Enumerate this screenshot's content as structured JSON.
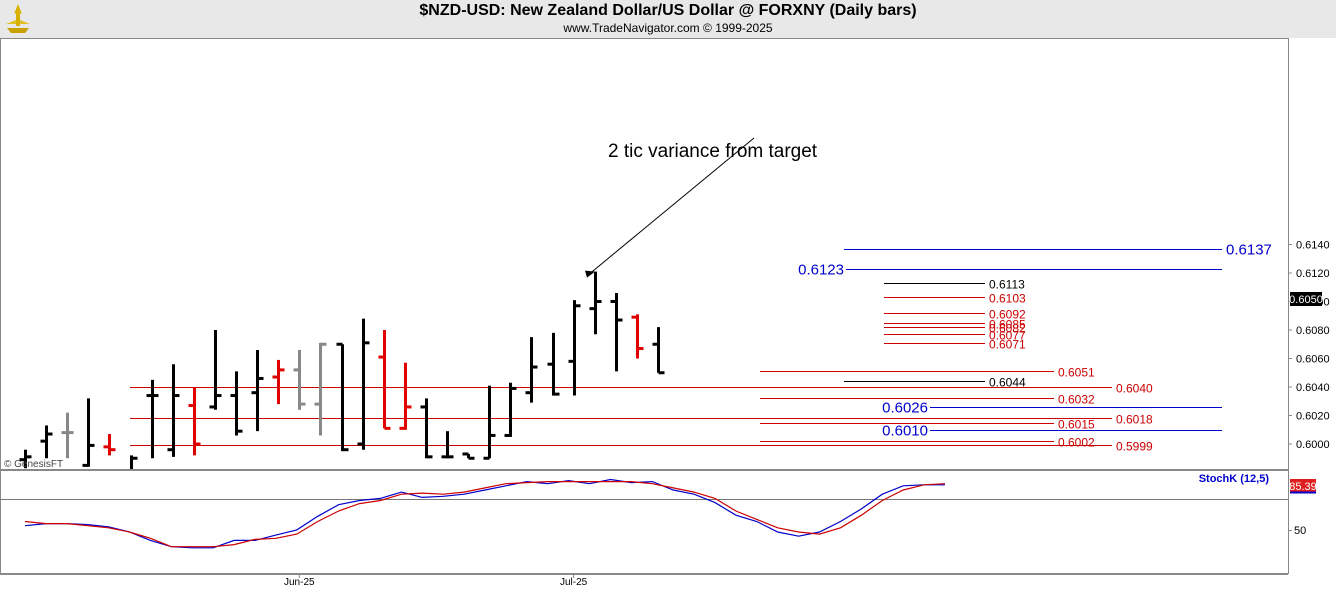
{
  "header": {
    "title": "$NZD-USD:  New Zealand Dollar/US Dollar @ FORXNY  (Daily bars)",
    "subtitle": "www.TradeNavigator.com © 1999-2025",
    "watermark": "© GenesisFT"
  },
  "chart_data": [
    {
      "type": "ohlc",
      "ylim": [
        0.5991,
        0.6144
      ],
      "y_ticks": [
        "0.6000",
        "0.6020",
        "0.6040",
        "0.6060",
        "0.6080",
        "0.6100",
        "0.6120",
        "0.6140"
      ],
      "x_labels": [
        {
          "label": "Jun-25",
          "bar": 13
        },
        {
          "label": "Jul-25",
          "bar": 26
        }
      ],
      "last_price_label": "0.6050",
      "bars": [
        {
          "o": 0.5989,
          "h": 0.5996,
          "l": 0.5983,
          "c": 0.5991,
          "color": "black"
        },
        {
          "o": 0.6002,
          "h": 0.6013,
          "l": 0.599,
          "c": 0.6007,
          "color": "black"
        },
        {
          "o": 0.6008,
          "h": 0.6022,
          "l": 0.599,
          "c": 0.6008,
          "color": "gray"
        },
        {
          "o": 0.5985,
          "h": 0.6032,
          "l": 0.5984,
          "c": 0.5999,
          "color": "black"
        },
        {
          "o": 0.5998,
          "h": 0.6007,
          "l": 0.5992,
          "c": 0.5996,
          "color": "red"
        },
        {
          "o": 0.598,
          "h": 0.5992,
          "l": 0.5978,
          "c": 0.599,
          "color": "black"
        },
        {
          "o": 0.6034,
          "h": 0.6045,
          "l": 0.599,
          "c": 0.6034,
          "color": "black"
        },
        {
          "o": 0.5996,
          "h": 0.6056,
          "l": 0.5991,
          "c": 0.6034,
          "color": "black"
        },
        {
          "o": 0.6027,
          "h": 0.604,
          "l": 0.5992,
          "c": 0.6,
          "color": "red"
        },
        {
          "o": 0.6026,
          "h": 0.608,
          "l": 0.6024,
          "c": 0.6034,
          "color": "black"
        },
        {
          "o": 0.6034,
          "h": 0.6051,
          "l": 0.6006,
          "c": 0.6009,
          "color": "black"
        },
        {
          "o": 0.6036,
          "h": 0.6066,
          "l": 0.6009,
          "c": 0.6046,
          "color": "black"
        },
        {
          "o": 0.6047,
          "h": 0.6059,
          "l": 0.6028,
          "c": 0.6052,
          "color": "red"
        },
        {
          "o": 0.6052,
          "h": 0.6066,
          "l": 0.6024,
          "c": 0.6028,
          "color": "gray"
        },
        {
          "o": 0.6028,
          "h": 0.6071,
          "l": 0.6006,
          "c": 0.607,
          "color": "gray"
        },
        {
          "o": 0.607,
          "h": 0.607,
          "l": 0.5995,
          "c": 0.5996,
          "color": "black"
        },
        {
          "o": 0.6,
          "h": 0.6088,
          "l": 0.5996,
          "c": 0.6071,
          "color": "black"
        },
        {
          "o": 0.6061,
          "h": 0.608,
          "l": 0.6011,
          "c": 0.6011,
          "color": "red"
        },
        {
          "o": 0.6011,
          "h": 0.6057,
          "l": 0.601,
          "c": 0.6026,
          "color": "red"
        },
        {
          "o": 0.6026,
          "h": 0.6032,
          "l": 0.599,
          "c": 0.5991,
          "color": "black"
        },
        {
          "o": 0.5991,
          "h": 0.6009,
          "l": 0.599,
          "c": 0.5991,
          "color": "black"
        },
        {
          "o": 0.5993,
          "h": 0.5993,
          "l": 0.599,
          "c": 0.599,
          "color": "black"
        },
        {
          "o": 0.599,
          "h": 0.6041,
          "l": 0.599,
          "c": 0.6006,
          "color": "black"
        },
        {
          "o": 0.6006,
          "h": 0.6043,
          "l": 0.6005,
          "c": 0.6039,
          "color": "black"
        },
        {
          "o": 0.6036,
          "h": 0.6075,
          "l": 0.6029,
          "c": 0.6054,
          "color": "black"
        },
        {
          "o": 0.6056,
          "h": 0.6078,
          "l": 0.6034,
          "c": 0.6035,
          "color": "black"
        },
        {
          "o": 0.6058,
          "h": 0.6101,
          "l": 0.6034,
          "c": 0.6097,
          "color": "black"
        },
        {
          "o": 0.6095,
          "h": 0.6121,
          "l": 0.6077,
          "c": 0.61,
          "color": "black"
        },
        {
          "o": 0.61,
          "h": 0.6106,
          "l": 0.6051,
          "c": 0.6087,
          "color": "black"
        },
        {
          "o": 0.6089,
          "h": 0.6091,
          "l": 0.606,
          "c": 0.6067,
          "color": "red"
        },
        {
          "o": 0.607,
          "h": 0.6082,
          "l": 0.605,
          "c": 0.605,
          "color": "black"
        }
      ],
      "levels": [
        {
          "label": "0.6137",
          "value": 0.6137,
          "color": "#0000cc",
          "big": true,
          "label_side": "right",
          "from": 844,
          "to": 1222
        },
        {
          "label": "0.6123",
          "value": 0.6123,
          "color": "#0000cc",
          "big": true,
          "label_side": "left",
          "from": 846,
          "to": 1222
        },
        {
          "label": "0.6113",
          "value": 0.6113,
          "color": "#000000",
          "big": false,
          "label_side": "right",
          "from": 884,
          "to": 985
        },
        {
          "label": "0.6103",
          "value": 0.6103,
          "color": "#cc0000",
          "big": false,
          "label_side": "right",
          "from": 884,
          "to": 985
        },
        {
          "label": "0.6092",
          "value": 0.6092,
          "color": "#cc0000",
          "big": false,
          "label_side": "right",
          "from": 884,
          "to": 985
        },
        {
          "label": "0.6085",
          "value": 0.6085,
          "color": "#cc0000",
          "big": false,
          "label_side": "right",
          "from": 884,
          "to": 985
        },
        {
          "label": "0.6082",
          "value": 0.6082,
          "color": "#cc0000",
          "big": false,
          "label_side": "right",
          "from": 884,
          "to": 985
        },
        {
          "label": "0.6077",
          "value": 0.6077,
          "color": "#cc0000",
          "big": false,
          "label_side": "right",
          "from": 884,
          "to": 985
        },
        {
          "label": "0.6071",
          "value": 0.6071,
          "color": "#cc0000",
          "big": false,
          "label_side": "right",
          "from": 884,
          "to": 985
        },
        {
          "label": "0.6051",
          "value": 0.6051,
          "color": "#cc0000",
          "big": false,
          "label_side": "right",
          "from": 760,
          "to": 1054
        },
        {
          "label": "0.6044",
          "value": 0.6044,
          "color": "#000000",
          "big": false,
          "label_side": "right",
          "from": 844,
          "to": 985
        },
        {
          "label": "0.6040",
          "value": 0.604,
          "color": "#cc0000",
          "big": false,
          "label_side": "right",
          "from": 130,
          "to": 1112
        },
        {
          "label": "0.6032",
          "value": 0.6032,
          "color": "#cc0000",
          "big": false,
          "label_side": "right",
          "from": 760,
          "to": 1054
        },
        {
          "label": "0.6026",
          "value": 0.6026,
          "color": "#0000cc",
          "big": true,
          "label_side": "left",
          "from": 930,
          "to": 1222
        },
        {
          "label": "0.6018",
          "value": 0.6018,
          "color": "#cc0000",
          "big": false,
          "label_side": "right",
          "from": 130,
          "to": 1112
        },
        {
          "label": "0.6015",
          "value": 0.6015,
          "color": "#cc0000",
          "big": false,
          "label_side": "right",
          "from": 760,
          "to": 1054
        },
        {
          "label": "0.6010",
          "value": 0.601,
          "color": "#0000cc",
          "big": true,
          "label_side": "left",
          "from": 930,
          "to": 1222
        },
        {
          "label": "0.6002",
          "value": 0.6002,
          "color": "#cc0000",
          "big": false,
          "label_side": "right",
          "from": 760,
          "to": 1054
        },
        {
          "label": "0.5999",
          "value": 0.5999,
          "color": "#cc0000",
          "big": false,
          "label_side": "right",
          "from": 130,
          "to": 1112
        }
      ],
      "annotation": {
        "text": "2 tic variance from target",
        "points_to_bar": 27
      }
    },
    {
      "type": "line",
      "title": "StochK (12,5)",
      "ylim": [
        0,
        100
      ],
      "y_ticks": [
        "50"
      ],
      "last_value_label": "85.39",
      "series": [
        {
          "color": "#0000cc",
          "values": [
            46,
            48,
            48,
            47,
            45,
            40,
            32,
            26,
            25,
            25,
            32,
            32,
            37,
            42,
            55,
            66,
            70,
            72,
            78,
            73,
            74,
            76,
            80,
            84,
            88,
            86,
            89,
            86,
            90,
            87,
            88,
            80,
            76,
            68,
            56,
            50,
            40,
            36,
            40,
            50,
            62,
            76,
            84,
            85,
            85
          ]
        },
        {
          "color": "#cc0000",
          "values": [
            50,
            48,
            48,
            46,
            44,
            40,
            34,
            26,
            26,
            26,
            28,
            33,
            34,
            38,
            50,
            60,
            67,
            70,
            76,
            77,
            76,
            78,
            82,
            86,
            87,
            88,
            88,
            88,
            88,
            88,
            86,
            82,
            78,
            72,
            60,
            52,
            44,
            40,
            38,
            44,
            56,
            70,
            80,
            85,
            86
          ]
        }
      ]
    }
  ]
}
